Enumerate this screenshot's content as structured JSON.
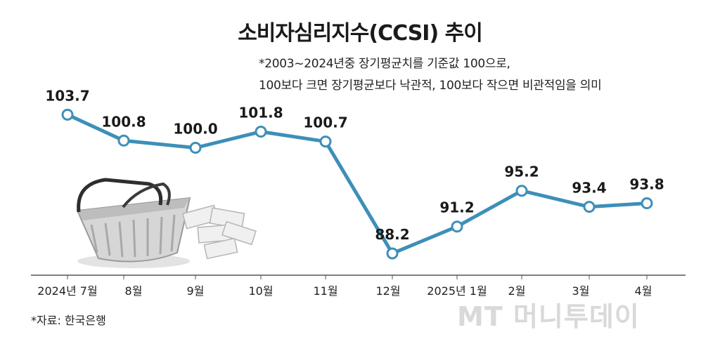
{
  "title": "소비자심리지수(CCSI) 추이",
  "note_line1": "*2003~2024년중 장기평균치를 기준값 100으로,",
  "note_line2": "100보다 크면 장기평균보다 낙관적, 100보다 작으면 비관적임을 의미",
  "source": "*자료: 한국은행",
  "watermark": "MT 머니투데이",
  "colors": {
    "line": "#3d8fb8",
    "marker_fill": "#ffffff",
    "axis": "#555555"
  },
  "chart_data": {
    "type": "line",
    "categories": [
      "2024년 7월",
      "8월",
      "9월",
      "10월",
      "11월",
      "12월",
      "2025년 1월",
      "2월",
      "3월",
      "4월"
    ],
    "values": [
      103.7,
      100.8,
      100.0,
      101.8,
      100.7,
      88.2,
      91.2,
      95.2,
      93.4,
      93.8
    ],
    "labels": [
      "103.7",
      "100.8",
      "100.0",
      "101.8",
      "100.7",
      "88.2",
      "91.2",
      "95.2",
      "93.4",
      "93.8"
    ],
    "title": "소비자심리지수(CCSI) 추이",
    "xlabel": "",
    "ylabel": "",
    "ylim": [
      86,
      106
    ],
    "grid": false,
    "legend": "none"
  }
}
